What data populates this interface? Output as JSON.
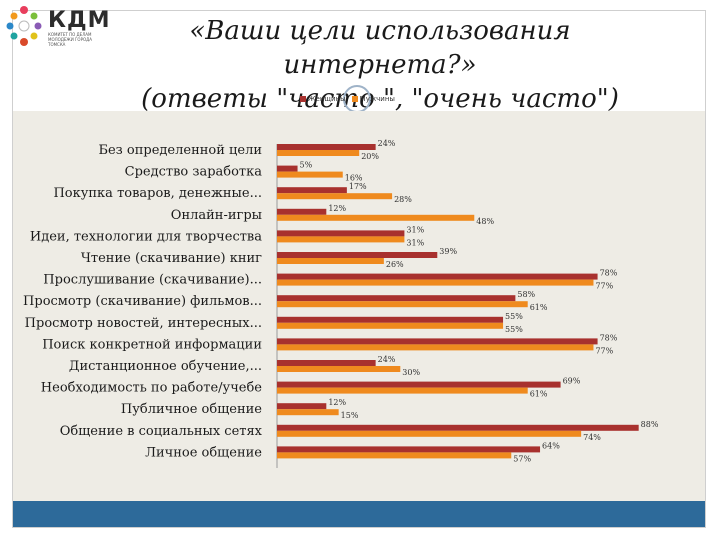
{
  "header": {
    "logo_text": "КДМ",
    "logo_subtitle": "КОМИТЕТ ПО ДЕЛАМ МОЛОДЕЖИ ГОРОДА ТОМСКА"
  },
  "chart_data": {
    "type": "bar",
    "orientation": "horizontal",
    "title": "«Ваши цели использования интернета?»",
    "subtitle": "(ответы \"часто \", \"очень часто\")",
    "categories": [
      "Без определенной цели",
      "Средство заработка",
      "Покупка товаров, денежные...",
      "Онлайн-игры",
      "Идеи, технологии для творчества",
      "Чтение (скачивание) книг",
      "Прослушивание (скачивание)...",
      "Просмотр (скачивание) фильмов...",
      "Просмотр новостей, интересных...",
      "Поиск конкретной информации",
      "Дистанционное обучение,...",
      "Необходимость по работе/учебе",
      "Публичное общение",
      "Общение в социальных сетях",
      "Личное общение"
    ],
    "series": [
      {
        "name": "Женщины",
        "color": "#a8312e",
        "values": [
          24,
          5,
          17,
          12,
          31,
          39,
          78,
          58,
          55,
          78,
          24,
          69,
          12,
          88,
          64
        ]
      },
      {
        "name": "Мужчины",
        "color": "#ef8a1e",
        "values": [
          20,
          16,
          28,
          48,
          31,
          26,
          77,
          61,
          55,
          77,
          30,
          61,
          15,
          74,
          57
        ]
      }
    ],
    "value_suffix": "%",
    "xlim": [
      0,
      100
    ],
    "legend_position": "top",
    "grid": false
  }
}
